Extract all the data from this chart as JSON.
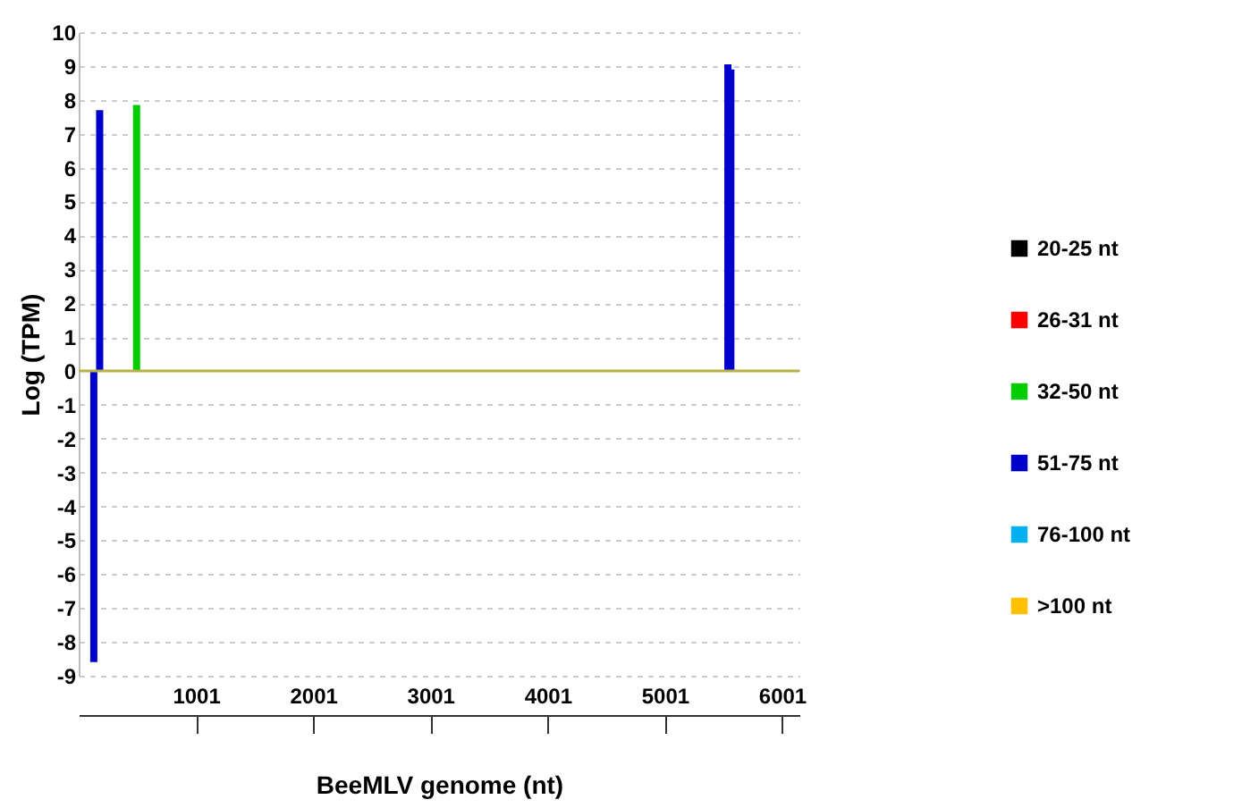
{
  "chart_data": {
    "type": "bar",
    "xlabel": "BeeMLV genome (nt)",
    "ylabel": "Log (TPM)",
    "xlim": [
      1,
      6150
    ],
    "xticks": [
      1001,
      2001,
      3001,
      4001,
      5001,
      6001
    ],
    "ylim": [
      -9,
      10
    ],
    "yticks": [
      -9,
      -8,
      -7,
      -6,
      -5,
      -4,
      -3,
      -2,
      -1,
      0,
      1,
      2,
      3,
      4,
      5,
      6,
      7,
      8,
      9,
      10
    ],
    "grid": "y",
    "legend": "right",
    "ref_lines": [
      {
        "axis": "y",
        "value": 0,
        "color": "#b8b048"
      }
    ],
    "series": [
      {
        "name": "20-25 nt",
        "color": "#000000"
      },
      {
        "name": "26-31 nt",
        "color": "#ff0000"
      },
      {
        "name": "32-50 nt",
        "color": "#00cc00",
        "x": [
          495
        ],
        "values": [
          7.85
        ]
      },
      {
        "name": "51-75 nt",
        "color": "#0000cc",
        "x": [
          130,
          180,
          5540,
          5565
        ],
        "values": [
          -8.6,
          7.7,
          9.05,
          8.9
        ]
      },
      {
        "name": "76-100 nt",
        "color": "#00b0f0"
      },
      {
        "name": ">100 nt",
        "color": "#ffc000"
      }
    ]
  }
}
